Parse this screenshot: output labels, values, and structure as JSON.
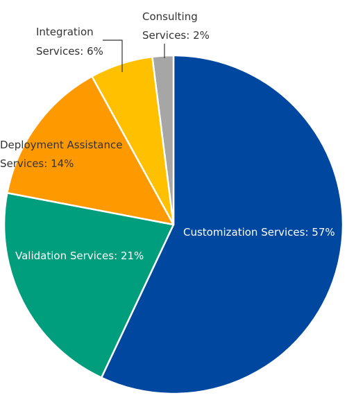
{
  "chart_data": {
    "type": "pie",
    "title": "",
    "slices": [
      {
        "name": "Customization Services",
        "value": 57,
        "label_lines": [
          "Customization Services: 57%"
        ],
        "color": "#0047a0",
        "label_color": "#ffffff"
      },
      {
        "name": "Validation Services",
        "value": 21,
        "label_lines": [
          "Validation Services: 21%"
        ],
        "color": "#009e7c",
        "label_color": "#ffffff"
      },
      {
        "name": "Deployment Assistance Services",
        "value": 14,
        "label_lines": [
          "Deployment Assistance",
          "Services: 14%"
        ],
        "color": "#ff9900",
        "label_color": "#333333"
      },
      {
        "name": "Integration Services",
        "value": 6,
        "label_lines": [
          "Integration",
          "Services: 6%"
        ],
        "color": "#ffc000",
        "label_color": "#333333"
      },
      {
        "name": "Consulting Services",
        "value": 2,
        "label_lines": [
          "Consulting",
          "Services: 2%"
        ],
        "color": "#a6a6a6",
        "label_color": "#333333"
      }
    ]
  }
}
